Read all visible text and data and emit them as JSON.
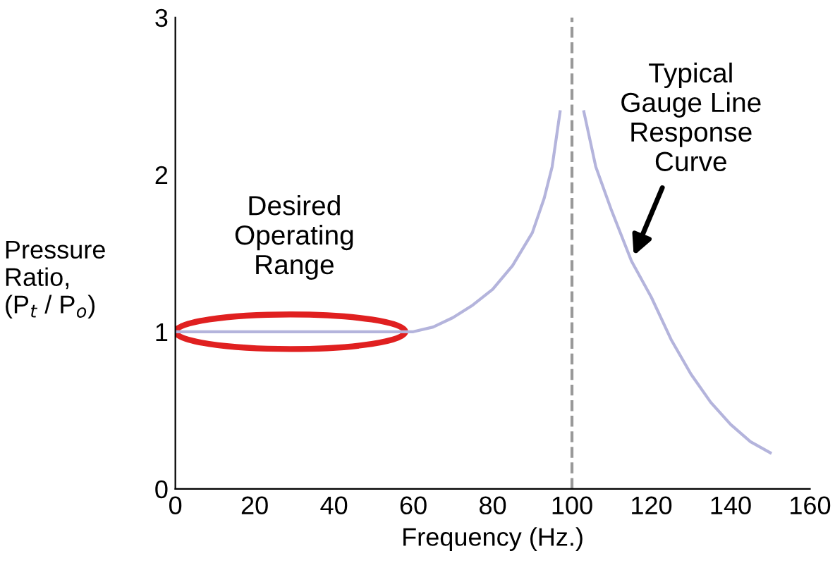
{
  "chart_data": {
    "type": "line",
    "xlabel": "Frequency (Hz.)",
    "ylabel": "Pressure\nRatio,\n(P$_{t}$ / P$_{o}$)",
    "xlim": [
      0,
      160
    ],
    "ylim": [
      0,
      3
    ],
    "xticks": [
      0,
      20,
      40,
      60,
      80,
      100,
      120,
      140,
      160
    ],
    "yticks": [
      0,
      1,
      2,
      3
    ],
    "grid": false,
    "legend": false,
    "series": [
      {
        "color": "#b4b4dc",
        "x": [
          0,
          20,
          40,
          60,
          65,
          70,
          75,
          80,
          85,
          90,
          93,
          95,
          97,
          100,
          103,
          106,
          110,
          115,
          120,
          125,
          130,
          135,
          140,
          145,
          150
        ],
        "values": [
          1.0,
          1.0,
          1.0,
          1.0,
          1.03,
          1.09,
          1.17,
          1.27,
          1.42,
          1.63,
          1.85,
          2.05,
          2.4,
          null,
          2.4,
          2.05,
          1.77,
          1.45,
          1.22,
          0.95,
          0.73,
          0.55,
          0.41,
          0.3,
          0.23
        ]
      }
    ],
    "ref_lines": [
      {
        "axis": "x",
        "value": 100,
        "color": "#999999",
        "line_style": "dashed"
      }
    ],
    "annotations": [
      "Desired\nOperating\nRange",
      {
        "text": "Typical\nGauge Line\nResponse\nCurve",
        "x": 115,
        "y": 1.45
      }
    ]
  }
}
